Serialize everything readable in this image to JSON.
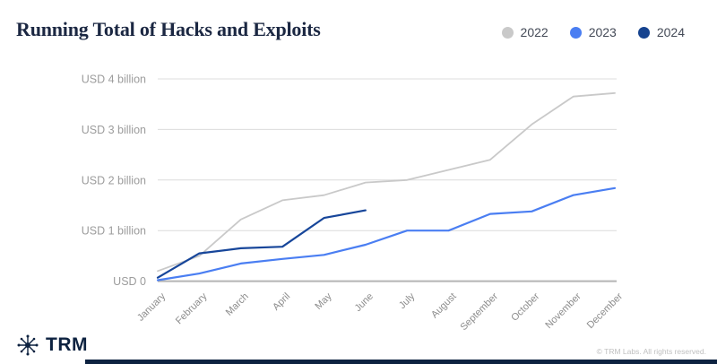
{
  "header": {
    "title": "Running Total of Hacks and Exploits"
  },
  "legend": [
    {
      "label": "2022",
      "color": "#c9c9c9"
    },
    {
      "label": "2023",
      "color": "#4a7ef2"
    },
    {
      "label": "2024",
      "color": "#16438f"
    }
  ],
  "chart_data": {
    "type": "line",
    "title": "Running Total of Hacks and Exploits",
    "unit": "USD billion",
    "x": [
      "January",
      "February",
      "March",
      "April",
      "May",
      "June",
      "July",
      "August",
      "September",
      "October",
      "November",
      "December"
    ],
    "y_ticks": [
      "USD 0",
      "USD 1 billion",
      "USD 2 billion",
      "USD 3 billion",
      "USD 4 billion"
    ],
    "ylim": [
      0,
      4
    ],
    "grid": "horizontal",
    "grid_color": "#dcdcdc",
    "baseline_color": "#b5b5b5",
    "legend_position": "top-right",
    "series": [
      {
        "name": "2022",
        "color": "#c9c9c9",
        "width": 1.8,
        "values": [
          0.2,
          0.5,
          1.22,
          1.6,
          1.7,
          1.95,
          2.0,
          2.2,
          2.4,
          3.1,
          3.65,
          3.72
        ]
      },
      {
        "name": "2023",
        "color": "#4a7ef2",
        "width": 2.2,
        "values": [
          0.02,
          0.15,
          0.35,
          0.44,
          0.52,
          0.72,
          1.0,
          1.0,
          1.33,
          1.38,
          1.7,
          1.84
        ]
      },
      {
        "name": "2024",
        "color": "#17469a",
        "width": 2.2,
        "values": [
          0.07,
          0.55,
          0.65,
          0.68,
          1.25,
          1.4
        ]
      }
    ]
  },
  "footer": {
    "brand": "TRM",
    "copyright": "© TRM Labs. All rights reserved.",
    "bar_color": "#0d2240"
  }
}
